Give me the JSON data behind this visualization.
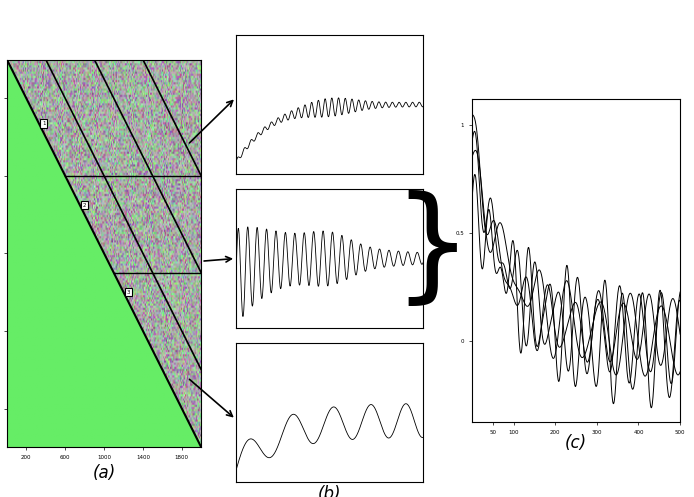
{
  "bg_color": "#ffffff",
  "panel_a": {
    "green_color": "#66ee66",
    "label": "(a)",
    "marker_labels": [
      "1",
      "2",
      "3"
    ]
  },
  "panel_b": {
    "label": "(b)",
    "n_plots": 3,
    "signal_color": "black"
  },
  "panel_c": {
    "label": "(c)",
    "n_lines": 4,
    "line_color": "black"
  },
  "arrow_color": "black",
  "brace_color": "black"
}
